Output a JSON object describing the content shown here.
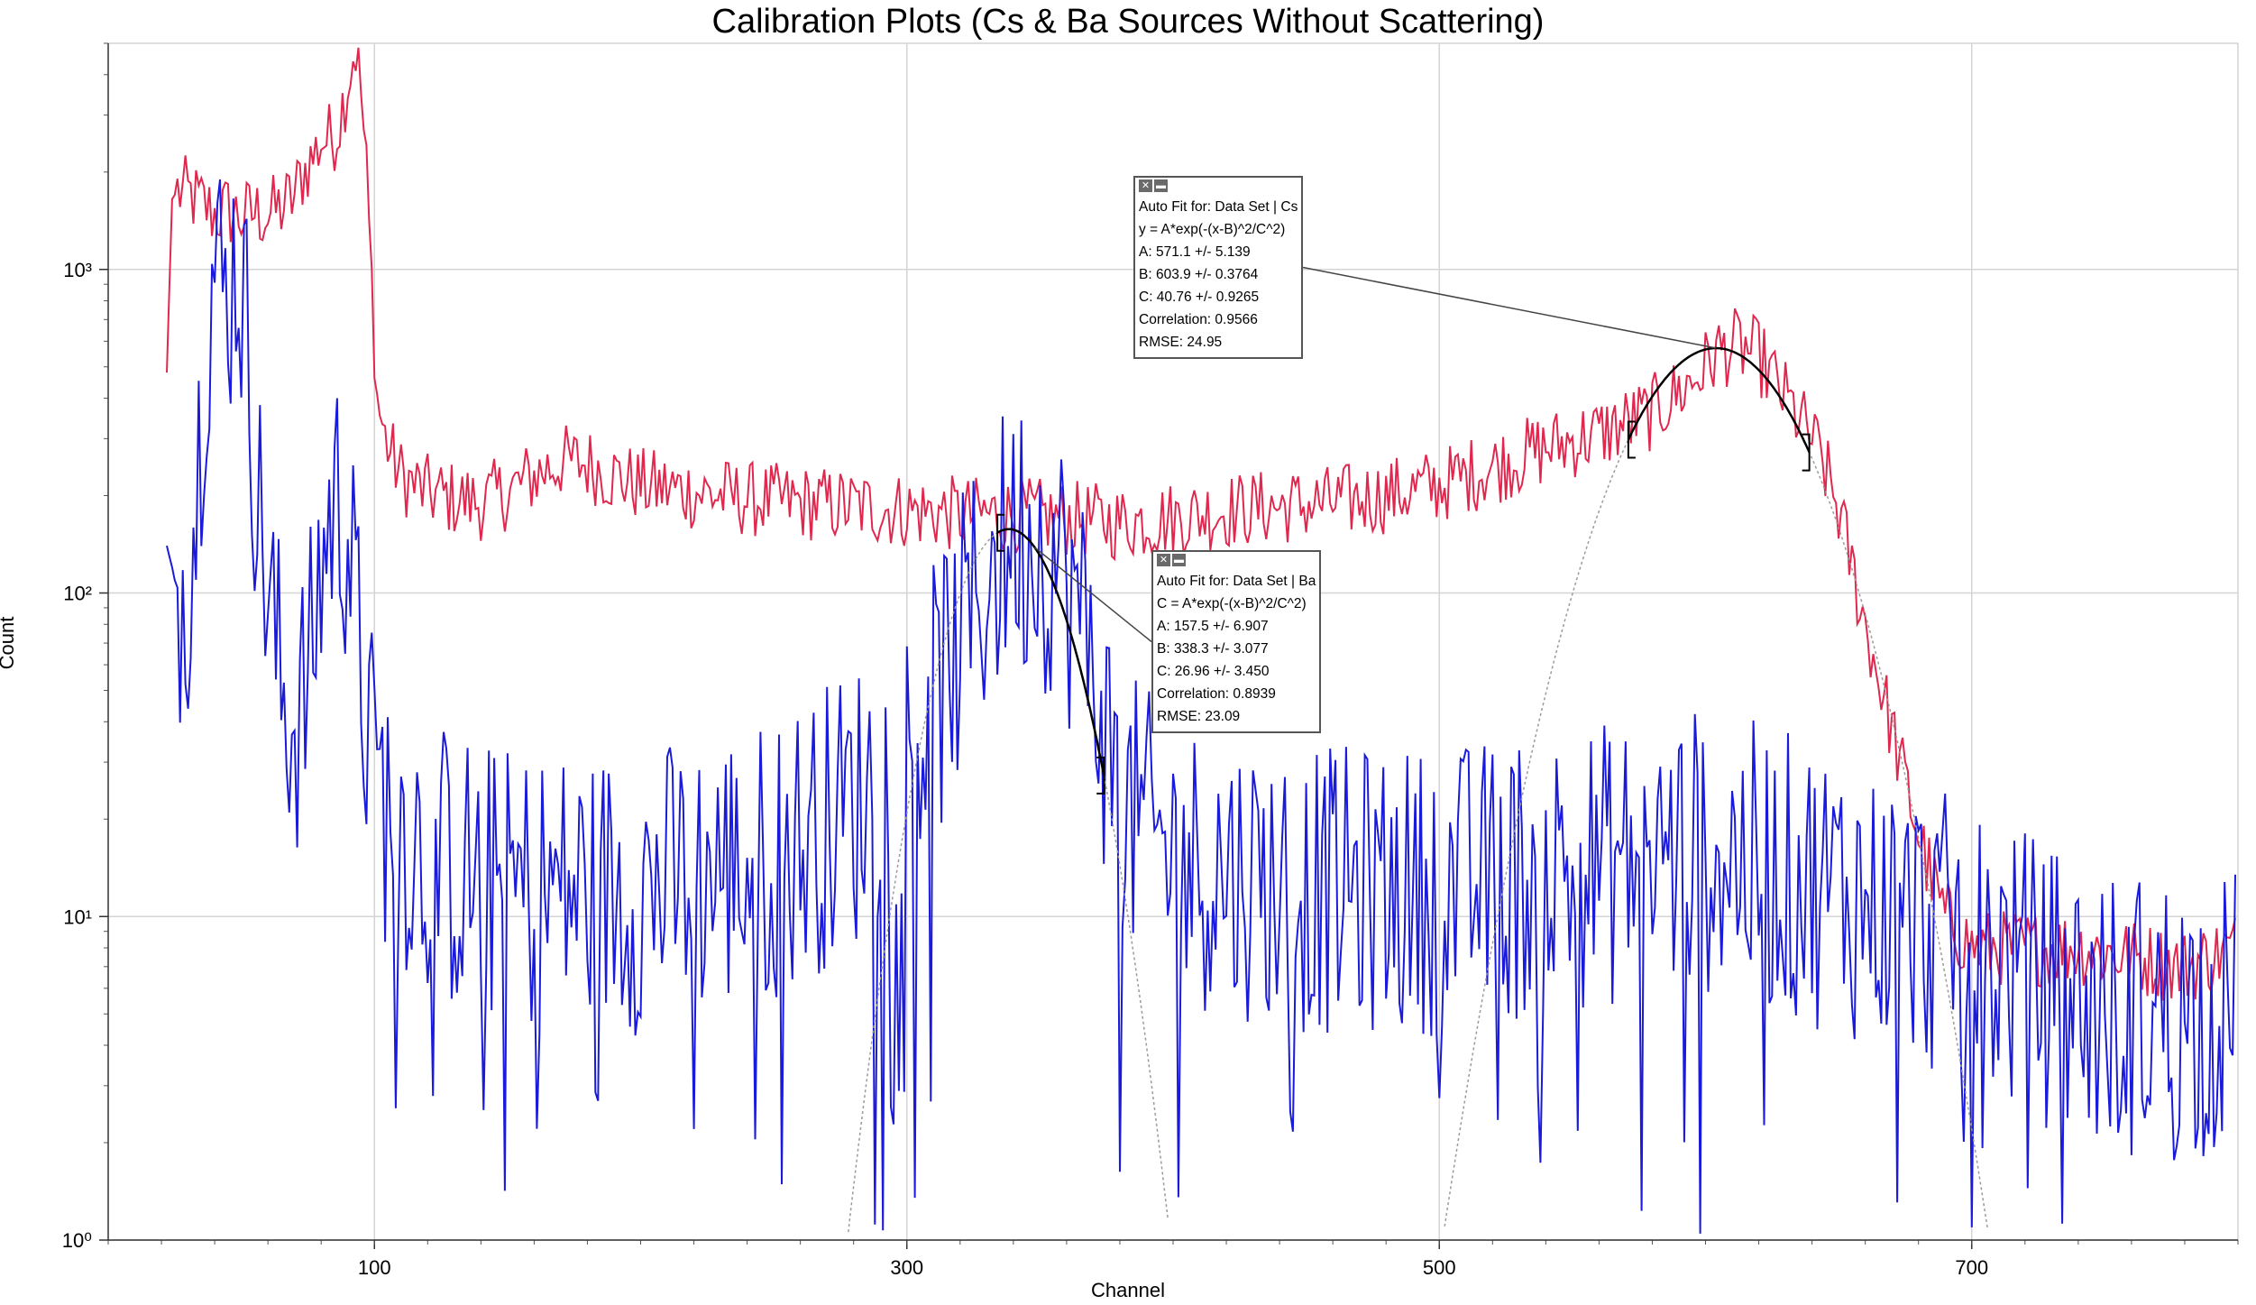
{
  "chart_data": {
    "type": "line",
    "title": "Calibration Plots (Cs & Ba Sources Without Scattering)",
    "xlabel": "Channel",
    "ylabel": "Count",
    "xlim": [
      0,
      800
    ],
    "ylim": [
      1,
      5000
    ],
    "yscale": "log",
    "grid": true,
    "xticks": [
      100,
      300,
      500,
      700
    ],
    "yticks": [
      {
        "value": 1,
        "label": "10⁰"
      },
      {
        "value": 10,
        "label": "10¹"
      },
      {
        "value": 100,
        "label": "10²"
      },
      {
        "value": 1000,
        "label": "10³"
      }
    ],
    "colors": {
      "cs": "#e0284f",
      "ba": "#1a1adc",
      "fit": "#000000",
      "fit_extrapolated": "#9a9a9a",
      "grid": "#d4d4d4"
    },
    "series": [
      {
        "key": "cs",
        "description_label": "Cs",
        "points": [
          [
            22,
            480
          ],
          [
            24,
            1650
          ],
          [
            26,
            1750
          ],
          [
            30,
            1700
          ],
          [
            35,
            1600
          ],
          [
            40,
            1480
          ],
          [
            45,
            1520
          ],
          [
            50,
            1450
          ],
          [
            55,
            1500
          ],
          [
            60,
            1480
          ],
          [
            65,
            1550
          ],
          [
            70,
            1680
          ],
          [
            72,
            1900
          ],
          [
            75,
            2100
          ],
          [
            78,
            2300
          ],
          [
            80,
            2500
          ],
          [
            84,
            2550
          ],
          [
            86,
            2700
          ],
          [
            88,
            3200
          ],
          [
            90,
            3800
          ],
          [
            92,
            4600
          ],
          [
            93,
            4800
          ],
          [
            95,
            3500
          ],
          [
            97,
            2000
          ],
          [
            99,
            900
          ],
          [
            101,
            400
          ],
          [
            104,
            300
          ],
          [
            107,
            260
          ],
          [
            110,
            230
          ],
          [
            115,
            215
          ],
          [
            120,
            205
          ],
          [
            130,
            195
          ],
          [
            140,
            190
          ],
          [
            150,
            205
          ],
          [
            160,
            230
          ],
          [
            170,
            255
          ],
          [
            180,
            250
          ],
          [
            190,
            230
          ],
          [
            200,
            215
          ],
          [
            220,
            205
          ],
          [
            240,
            195
          ],
          [
            260,
            190
          ],
          [
            280,
            185
          ],
          [
            300,
            180
          ],
          [
            320,
            175
          ],
          [
            340,
            175
          ],
          [
            360,
            170
          ],
          [
            380,
            165
          ],
          [
            400,
            170
          ],
          [
            420,
            180
          ],
          [
            440,
            185
          ],
          [
            460,
            190
          ],
          [
            480,
            200
          ],
          [
            500,
            215
          ],
          [
            520,
            245
          ],
          [
            540,
            280
          ],
          [
            560,
            310
          ],
          [
            580,
            360
          ],
          [
            595,
            450
          ],
          [
            605,
            560
          ],
          [
            612,
            580
          ],
          [
            620,
            540
          ],
          [
            630,
            400
          ],
          [
            640,
            300
          ],
          [
            645,
            240
          ],
          [
            650,
            180
          ],
          [
            655,
            120
          ],
          [
            660,
            80
          ],
          [
            665,
            55
          ],
          [
            670,
            38
          ],
          [
            675,
            26
          ],
          [
            680,
            18
          ],
          [
            685,
            13
          ],
          [
            690,
            10
          ],
          [
            700,
            8
          ],
          [
            720,
            8
          ],
          [
            740,
            8
          ],
          [
            760,
            7.5
          ],
          [
            780,
            7
          ],
          [
            799,
            8
          ]
        ],
        "noise": 0.12
      },
      {
        "key": "ba",
        "description_label": "Ba",
        "points": [
          [
            22,
            140
          ],
          [
            24,
            120
          ],
          [
            26,
            100
          ],
          [
            30,
            120
          ],
          [
            33,
            200
          ],
          [
            36,
            550
          ],
          [
            40,
            1050
          ],
          [
            44,
            800
          ],
          [
            48,
            1100
          ],
          [
            50,
            900
          ],
          [
            53,
            500
          ],
          [
            56,
            200
          ],
          [
            60,
            100
          ],
          [
            65,
            50
          ],
          [
            70,
            40
          ],
          [
            75,
            50
          ],
          [
            80,
            120
          ],
          [
            85,
            200
          ],
          [
            90,
            160
          ],
          [
            93,
            80
          ],
          [
            97,
            40
          ],
          [
            100,
            25
          ],
          [
            120,
            15
          ],
          [
            150,
            12
          ],
          [
            200,
            12
          ],
          [
            250,
            15
          ],
          [
            280,
            22
          ],
          [
            300,
            32
          ],
          [
            310,
            45
          ],
          [
            320,
            70
          ],
          [
            330,
            110
          ],
          [
            340,
            155
          ],
          [
            350,
            145
          ],
          [
            360,
            110
          ],
          [
            370,
            60
          ],
          [
            375,
            35
          ],
          [
            380,
            22
          ],
          [
            400,
            15
          ],
          [
            450,
            12
          ],
          [
            500,
            12
          ],
          [
            550,
            14
          ],
          [
            600,
            16
          ],
          [
            650,
            12
          ],
          [
            700,
            8
          ],
          [
            750,
            5
          ],
          [
            799,
            5
          ]
        ],
        "noise": 0.45
      }
    ],
    "fits": [
      {
        "key": "cs",
        "box": [
          "Auto Fit for: Data Set | Cs",
          "y = A*exp(-(x-B)^2/C^2)",
          "A: 571.1 +/- 5.139",
          "B: 603.9 +/- 0.3764",
          "C: 40.76 +/- 0.9265",
          "Correlation: 0.9566",
          "RMSE: 24.95"
        ],
        "A": 571.1,
        "B": 603.9,
        "C": 40.76,
        "range": [
          571,
          639
        ],
        "anchor_x": 604
      },
      {
        "key": "ba",
        "box": [
          "Auto Fit for: Data Set | Ba",
          "C = A*exp(-(x-B)^2/C^2)",
          "A: 157.5 +/- 6.907",
          "B: 338.3 +/- 3.077",
          "C: 26.96 +/- 3.450",
          "Correlation: 0.8939",
          "RMSE: 23.09"
        ],
        "A": 157.5,
        "B": 338.3,
        "C": 26.96,
        "range": [
          334,
          374
        ],
        "anchor_x": 348
      }
    ]
  }
}
